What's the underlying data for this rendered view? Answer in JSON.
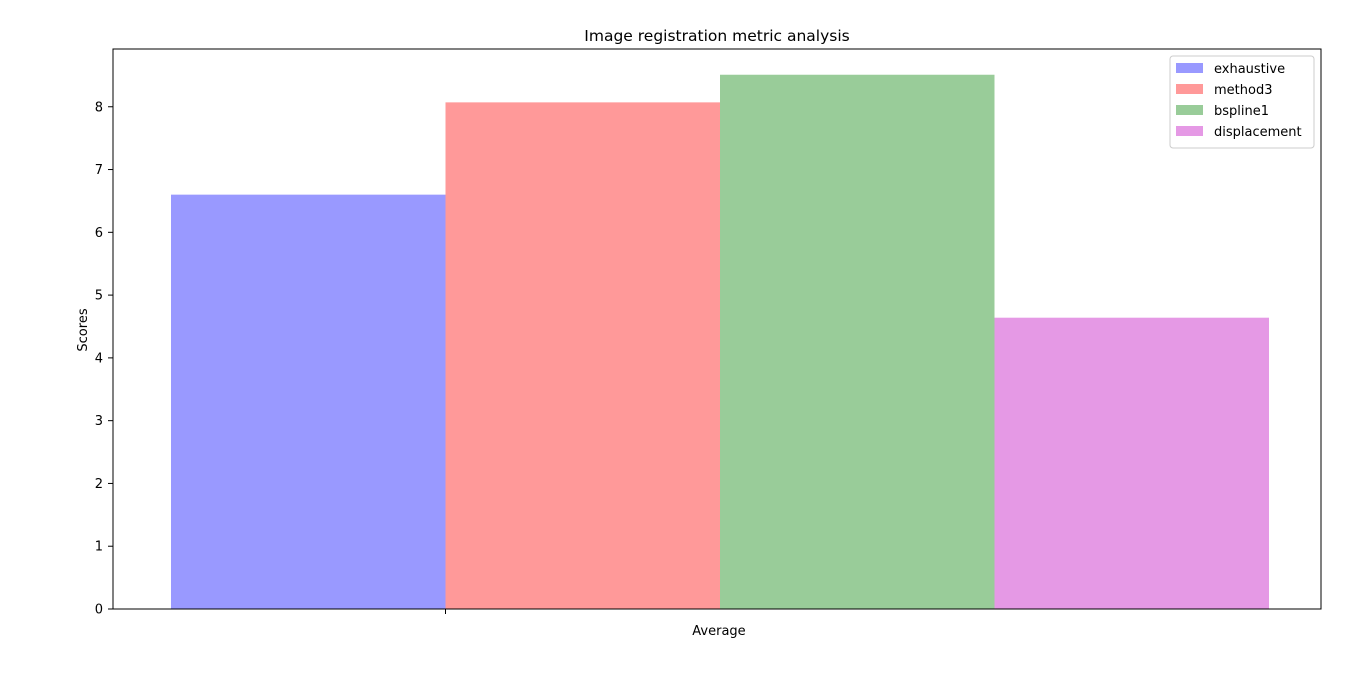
{
  "chart_data": {
    "type": "bar",
    "title": "Image registration metric analysis",
    "xlabel": "",
    "ylabel": "Scores",
    "categories": [
      "Average"
    ],
    "ylim": [
      0,
      8.92
    ],
    "yticks": [
      0,
      1,
      2,
      3,
      4,
      5,
      6,
      7,
      8
    ],
    "grid": false,
    "legend_position": "top-right",
    "series": [
      {
        "name": "exhaustive",
        "values": [
          6.6
        ],
        "color": "#9999ff"
      },
      {
        "name": "method3",
        "values": [
          8.07
        ],
        "color": "#ff9999"
      },
      {
        "name": "bspline1",
        "values": [
          8.51
        ],
        "color": "#99cc99"
      },
      {
        "name": "displacement",
        "values": [
          4.64
        ],
        "color": "#e599e5"
      }
    ]
  }
}
